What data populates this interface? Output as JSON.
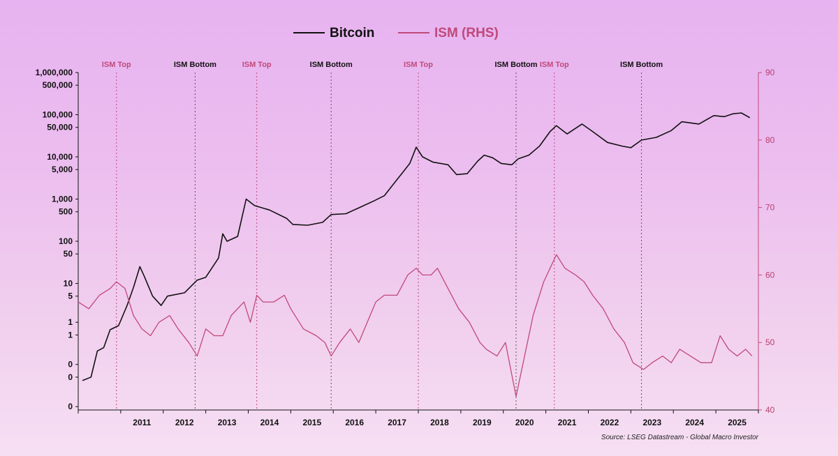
{
  "chart_data": {
    "type": "line",
    "source": "Source: LSEG Datastream - Global Macro Investor",
    "legend": [
      {
        "name": "Bitcoin",
        "color": "#111111"
      },
      {
        "name": "ISM (RHS)",
        "color": "#c0497a"
      }
    ],
    "left_axis": {
      "scale": "log",
      "tick_labels": [
        "1,000,000",
        "500,000",
        "100,000",
        "50,000",
        "10,000",
        "5,000",
        "1,000",
        "500",
        "100",
        "50",
        "10",
        "5",
        "1",
        "1",
        "0",
        "0",
        "0"
      ]
    },
    "right_axis": {
      "ylim": [
        40,
        90
      ],
      "ticks": [
        40,
        50,
        60,
        70,
        80,
        90
      ],
      "tick_labels": [
        "40",
        "50",
        "60",
        "70",
        "80",
        "90"
      ]
    },
    "x_axis": {
      "range": [
        2010.0,
        2026.0
      ],
      "year_labels": [
        "2011",
        "2012",
        "2013",
        "2014",
        "2015",
        "2016",
        "2017",
        "2018",
        "2019",
        "2020",
        "2021",
        "2022",
        "2023",
        "2024",
        "2025"
      ]
    },
    "events": [
      {
        "label": "ISM Top",
        "x": 2010.9,
        "kind": "top"
      },
      {
        "label": "ISM Bottom",
        "x": 2012.75,
        "kind": "bottom"
      },
      {
        "label": "ISM Top",
        "x": 2014.2,
        "kind": "top"
      },
      {
        "label": "ISM Bottom",
        "x": 2015.95,
        "kind": "bottom"
      },
      {
        "label": "ISM Top",
        "x": 2018.0,
        "kind": "top"
      },
      {
        "label": "ISM Bottom",
        "x": 2020.3,
        "kind": "bottom"
      },
      {
        "label": "ISM Top",
        "x": 2021.2,
        "kind": "top"
      },
      {
        "label": "ISM Bottom",
        "x": 2023.25,
        "kind": "bottom"
      }
    ],
    "series": [
      {
        "name": "Bitcoin",
        "points": [
          [
            2010.1,
            0.05
          ],
          [
            2010.3,
            0.06
          ],
          [
            2010.45,
            0.25
          ],
          [
            2010.6,
            0.3
          ],
          [
            2010.75,
            0.8
          ],
          [
            2010.95,
            1
          ],
          [
            2011.15,
            3
          ],
          [
            2011.3,
            8
          ],
          [
            2011.45,
            25
          ],
          [
            2011.55,
            15
          ],
          [
            2011.75,
            5
          ],
          [
            2011.95,
            3
          ],
          [
            2012.1,
            5
          ],
          [
            2012.5,
            6
          ],
          [
            2012.8,
            12
          ],
          [
            2013.0,
            14
          ],
          [
            2013.3,
            40
          ],
          [
            2013.4,
            150
          ],
          [
            2013.5,
            100
          ],
          [
            2013.75,
            130
          ],
          [
            2013.95,
            1000
          ],
          [
            2014.15,
            700
          ],
          [
            2014.5,
            550
          ],
          [
            2014.9,
            350
          ],
          [
            2015.05,
            250
          ],
          [
            2015.4,
            240
          ],
          [
            2015.75,
            280
          ],
          [
            2015.95,
            430
          ],
          [
            2016.3,
            450
          ],
          [
            2016.6,
            620
          ],
          [
            2016.95,
            900
          ],
          [
            2017.2,
            1200
          ],
          [
            2017.45,
            2500
          ],
          [
            2017.65,
            4500
          ],
          [
            2017.8,
            7000
          ],
          [
            2017.95,
            17000
          ],
          [
            2018.1,
            10000
          ],
          [
            2018.35,
            7500
          ],
          [
            2018.7,
            6500
          ],
          [
            2018.9,
            3800
          ],
          [
            2019.15,
            4000
          ],
          [
            2019.4,
            8000
          ],
          [
            2019.55,
            11000
          ],
          [
            2019.75,
            9500
          ],
          [
            2019.95,
            7000
          ],
          [
            2020.2,
            6500
          ],
          [
            2020.35,
            9000
          ],
          [
            2020.6,
            11000
          ],
          [
            2020.85,
            18000
          ],
          [
            2021.1,
            40000
          ],
          [
            2021.25,
            55000
          ],
          [
            2021.5,
            35000
          ],
          [
            2021.85,
            60000
          ],
          [
            2022.1,
            40000
          ],
          [
            2022.45,
            22000
          ],
          [
            2022.8,
            18000
          ],
          [
            2023.0,
            16500
          ],
          [
            2023.25,
            25000
          ],
          [
            2023.6,
            29000
          ],
          [
            2023.95,
            42000
          ],
          [
            2024.2,
            68000
          ],
          [
            2024.6,
            60000
          ],
          [
            2024.95,
            95000
          ],
          [
            2025.2,
            90000
          ],
          [
            2025.4,
            105000
          ],
          [
            2025.6,
            110000
          ],
          [
            2025.8,
            85000
          ]
        ]
      },
      {
        "name": "ISM (RHS)",
        "points": [
          [
            2010.0,
            56
          ],
          [
            2010.25,
            55
          ],
          [
            2010.5,
            57
          ],
          [
            2010.75,
            58
          ],
          [
            2010.9,
            59
          ],
          [
            2011.1,
            58
          ],
          [
            2011.3,
            54
          ],
          [
            2011.5,
            52
          ],
          [
            2011.7,
            51
          ],
          [
            2011.9,
            53
          ],
          [
            2012.15,
            54
          ],
          [
            2012.35,
            52
          ],
          [
            2012.6,
            50
          ],
          [
            2012.8,
            48
          ],
          [
            2013.0,
            52
          ],
          [
            2013.2,
            51
          ],
          [
            2013.4,
            51
          ],
          [
            2013.6,
            54
          ],
          [
            2013.9,
            56
          ],
          [
            2014.05,
            53
          ],
          [
            2014.2,
            57
          ],
          [
            2014.35,
            56
          ],
          [
            2014.6,
            56
          ],
          [
            2014.85,
            57
          ],
          [
            2015.0,
            55
          ],
          [
            2015.3,
            52
          ],
          [
            2015.6,
            51
          ],
          [
            2015.8,
            50
          ],
          [
            2015.95,
            48
          ],
          [
            2016.15,
            50
          ],
          [
            2016.4,
            52
          ],
          [
            2016.6,
            50
          ],
          [
            2016.8,
            53
          ],
          [
            2017.0,
            56
          ],
          [
            2017.2,
            57
          ],
          [
            2017.5,
            57
          ],
          [
            2017.75,
            60
          ],
          [
            2017.95,
            61
          ],
          [
            2018.1,
            60
          ],
          [
            2018.3,
            60
          ],
          [
            2018.45,
            61
          ],
          [
            2018.7,
            58
          ],
          [
            2018.95,
            55
          ],
          [
            2019.2,
            53
          ],
          [
            2019.45,
            50
          ],
          [
            2019.6,
            49
          ],
          [
            2019.85,
            48
          ],
          [
            2020.05,
            50
          ],
          [
            2020.3,
            42
          ],
          [
            2020.5,
            48
          ],
          [
            2020.7,
            54
          ],
          [
            2020.95,
            59
          ],
          [
            2021.1,
            61
          ],
          [
            2021.25,
            63
          ],
          [
            2021.45,
            61
          ],
          [
            2021.7,
            60
          ],
          [
            2021.9,
            59
          ],
          [
            2022.1,
            57
          ],
          [
            2022.35,
            55
          ],
          [
            2022.6,
            52
          ],
          [
            2022.85,
            50
          ],
          [
            2023.05,
            47
          ],
          [
            2023.3,
            46
          ],
          [
            2023.5,
            47
          ],
          [
            2023.75,
            48
          ],
          [
            2023.95,
            47
          ],
          [
            2024.15,
            49
          ],
          [
            2024.4,
            48
          ],
          [
            2024.65,
            47
          ],
          [
            2024.9,
            47
          ],
          [
            2025.1,
            51
          ],
          [
            2025.3,
            49
          ],
          [
            2025.5,
            48
          ],
          [
            2025.7,
            49
          ],
          [
            2025.85,
            48
          ]
        ]
      }
    ]
  }
}
